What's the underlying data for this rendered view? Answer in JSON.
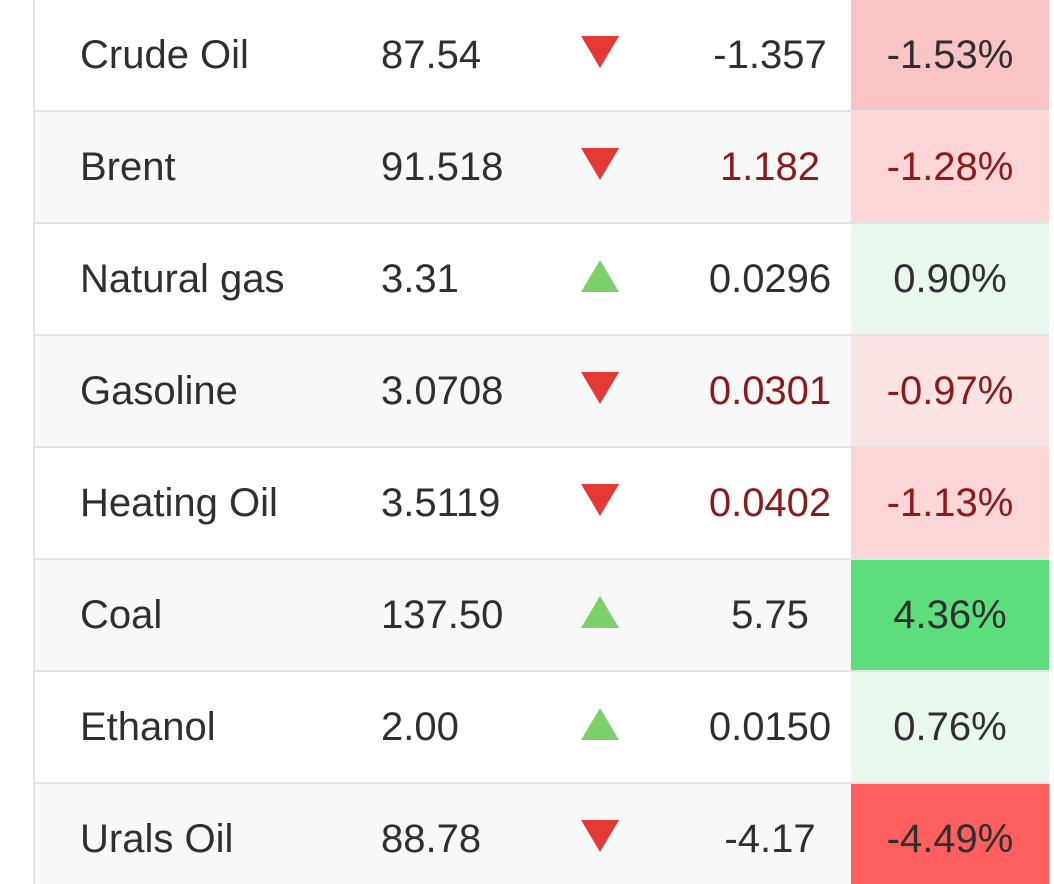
{
  "colors": {
    "up_arrow": "#7dcf6a",
    "down_arrow": "#e53935",
    "negative_change_text": "#8b1a1a",
    "neutral_text": "#2f2f2f"
  },
  "rows": [
    {
      "name": "Crude Oil",
      "price": "87.54",
      "direction": "down",
      "change": "-1.357",
      "change_red": false,
      "pct": "-1.53%",
      "pct_bg": "#fbc4c4",
      "pct_color": "#2f2f2f"
    },
    {
      "name": "Brent",
      "price": "91.518",
      "direction": "down",
      "change": "1.182",
      "change_red": true,
      "pct": "-1.28%",
      "pct_bg": "#fcd6d6",
      "pct_color": "#8b1a1a"
    },
    {
      "name": "Natural gas",
      "price": "3.31",
      "direction": "up",
      "change": "0.0296",
      "change_red": false,
      "pct": "0.90%",
      "pct_bg": "#e8f8ec",
      "pct_color": "#2f2f2f"
    },
    {
      "name": "Gasoline",
      "price": "3.0708",
      "direction": "down",
      "change": "0.0301",
      "change_red": true,
      "pct": "-0.97%",
      "pct_bg": "#fde4e4",
      "pct_color": "#8b1a1a"
    },
    {
      "name": "Heating Oil",
      "price": "3.5119",
      "direction": "down",
      "change": "0.0402",
      "change_red": true,
      "pct": "-1.13%",
      "pct_bg": "#fcd6d6",
      "pct_color": "#8b1a1a"
    },
    {
      "name": "Coal",
      "price": "137.50",
      "direction": "up",
      "change": "5.75",
      "change_red": false,
      "pct": "4.36%",
      "pct_bg": "#5ddf7e",
      "pct_color": "#2f2f2f"
    },
    {
      "name": "Ethanol",
      "price": "2.00",
      "direction": "up",
      "change": "0.0150",
      "change_red": false,
      "pct": "0.76%",
      "pct_bg": "#e8f8ec",
      "pct_color": "#2f2f2f"
    },
    {
      "name": "Urals Oil",
      "price": "88.78",
      "direction": "down",
      "change": "-4.17",
      "change_red": false,
      "pct": "-4.49%",
      "pct_bg": "#fd5e5e",
      "pct_color": "#2f2f2f"
    }
  ]
}
